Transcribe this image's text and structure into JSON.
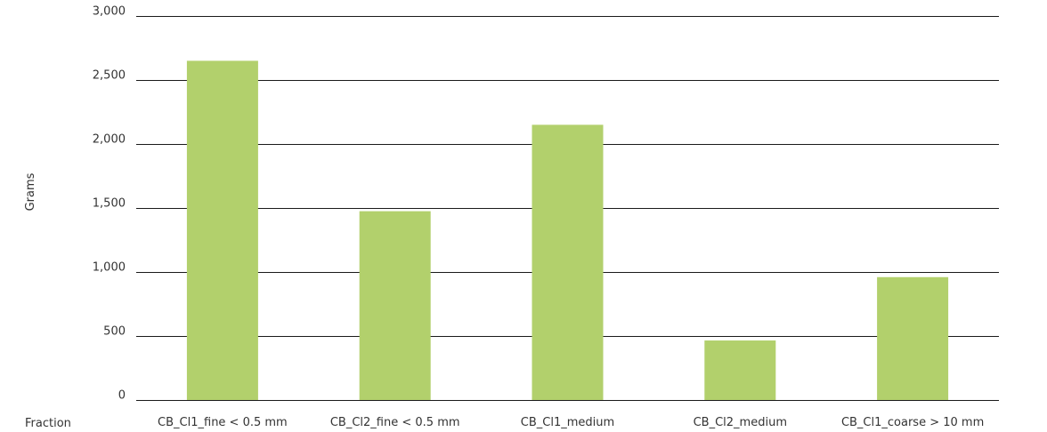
{
  "chart_data": {
    "type": "bar",
    "title": "",
    "ylabel": "Grams",
    "xlabel": "Fraction",
    "ylim": [
      0,
      3000
    ],
    "yticks": [
      0,
      500,
      1000,
      1500,
      2000,
      2500,
      3000
    ],
    "ytick_labels": [
      "0",
      "500",
      "1,000",
      "1,500",
      "2,000",
      "2,500",
      "3,000"
    ],
    "categories": [
      "CB_Cl1_fine < 0.5 mm",
      "CB_Cl2_fine < 0.5 mm",
      "CB_Cl1_medium",
      "CB_Cl2_medium",
      "CB_Cl1_coarse > 10 mm"
    ],
    "values": [
      2650,
      1475,
      2150,
      465,
      960
    ],
    "grid": true,
    "legend": "none",
    "colors": {
      "bar": "#b2d06c",
      "gridline": "#1a1a1a",
      "text": "#333333"
    }
  }
}
